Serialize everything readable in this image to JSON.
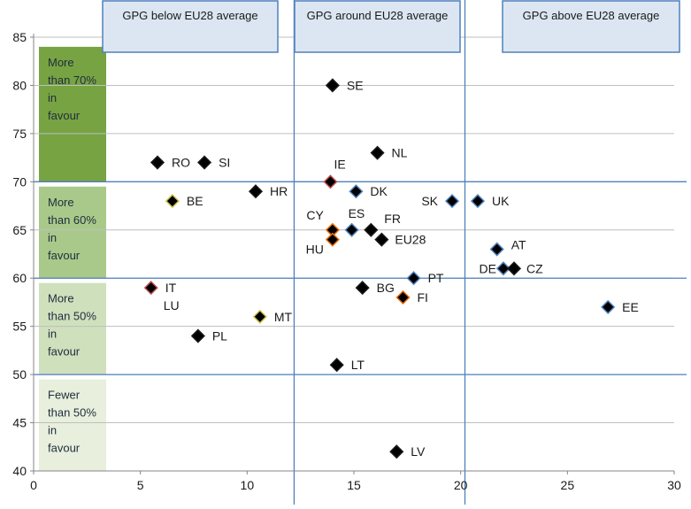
{
  "chart_data": {
    "type": "scatter",
    "title": "",
    "xlabel": "",
    "ylabel": "",
    "xlim": [
      0,
      30
    ],
    "ylim": [
      40,
      85
    ],
    "x_ticks": [
      0,
      5,
      10,
      15,
      20,
      25,
      30
    ],
    "y_ticks": [
      40,
      45,
      50,
      55,
      60,
      65,
      70,
      75,
      80,
      85
    ],
    "grid": "horizontal",
    "zone_headers": [
      "GPG below EU28 average",
      "GPG around EU28 average",
      "GPG above EU28 average"
    ],
    "zone_dividers_x": [
      12.2,
      20.2
    ],
    "threshold_lines_y": [
      70,
      60,
      50
    ],
    "opinion_bands": [
      {
        "label": "More than 70% in favour",
        "y_from": 70,
        "y_to": 84,
        "color": "#77a343"
      },
      {
        "label": "More than 60% in favour",
        "y_from": 60,
        "y_to": 69.5,
        "color": "#a9c98a"
      },
      {
        "label": "More than 50% in favour",
        "y_from": 50,
        "y_to": 59.5,
        "color": "#cfe0bd"
      },
      {
        "label": "Fewer than 50% in favour",
        "y_from": 40,
        "y_to": 49.5,
        "color": "#e8efdc"
      }
    ],
    "points": [
      {
        "label": "SE",
        "x": 14.0,
        "y": 80,
        "outline": "#1a1a1a"
      },
      {
        "label": "NL",
        "x": 16.1,
        "y": 73,
        "outline": "#1a1a1a"
      },
      {
        "label": "RO",
        "x": 5.8,
        "y": 72,
        "outline": "#1a1a1a"
      },
      {
        "label": "SI",
        "x": 8.0,
        "y": 72,
        "outline": "#1a1a1a"
      },
      {
        "label": "IE",
        "x": 13.9,
        "y": 70,
        "outline": "#c0504d"
      },
      {
        "label": "HR",
        "x": 10.4,
        "y": 69,
        "outline": "#1a1a1a"
      },
      {
        "label": "DK",
        "x": 15.1,
        "y": 69,
        "outline": "#4f81bd"
      },
      {
        "label": "SK",
        "x": 19.6,
        "y": 68,
        "outline": "#4f81bd"
      },
      {
        "label": "UK",
        "x": 20.8,
        "y": 68,
        "outline": "#4f81bd"
      },
      {
        "label": "BE",
        "x": 6.5,
        "y": 68,
        "outline": "#c9c24a"
      },
      {
        "label": "CY",
        "x": 14.0,
        "y": 65,
        "outline": "#e46c0a"
      },
      {
        "label": "ES",
        "x": 14.9,
        "y": 65,
        "outline": "#4f81bd"
      },
      {
        "label": "FR",
        "x": 15.8,
        "y": 65,
        "outline": "#1a1a1a"
      },
      {
        "label": "HU",
        "x": 14.0,
        "y": 64,
        "outline": "#e46c0a"
      },
      {
        "label": "EU28",
        "x": 16.3,
        "y": 64,
        "outline": "#1a1a1a"
      },
      {
        "label": "AT",
        "x": 21.7,
        "y": 63,
        "outline": "#4f81bd"
      },
      {
        "label": "DE",
        "x": 22.0,
        "y": 61,
        "outline": "#4f81bd"
      },
      {
        "label": "CZ",
        "x": 22.5,
        "y": 61,
        "outline": "#1a1a1a"
      },
      {
        "label": "PT",
        "x": 17.8,
        "y": 60,
        "outline": "#4f81bd"
      },
      {
        "label": "IT",
        "x": 5.5,
        "y": 59,
        "outline": "#c0504d"
      },
      {
        "label": "LU",
        "x": 5.5,
        "y": 59,
        "outline": "#c0504d"
      },
      {
        "label": "BG",
        "x": 15.4,
        "y": 59,
        "outline": "#1a1a1a"
      },
      {
        "label": "FI",
        "x": 17.3,
        "y": 58,
        "outline": "#e46c0a"
      },
      {
        "label": "EE",
        "x": 26.9,
        "y": 57,
        "outline": "#4f81bd"
      },
      {
        "label": "MT",
        "x": 10.6,
        "y": 56,
        "outline": "#c9c24a"
      },
      {
        "label": "PL",
        "x": 7.7,
        "y": 54,
        "outline": "#1a1a1a"
      },
      {
        "label": "LT",
        "x": 14.2,
        "y": 51,
        "outline": "#1a1a1a"
      },
      {
        "label": "LV",
        "x": 17.0,
        "y": 42,
        "outline": "#1a1a1a"
      }
    ],
    "colors": {
      "marker_fill": "#000000",
      "grid": "#bfbfbf",
      "zone_line": "#4f81bd",
      "header_fill": "#dce6f2",
      "header_border": "#4f81bd"
    }
  }
}
